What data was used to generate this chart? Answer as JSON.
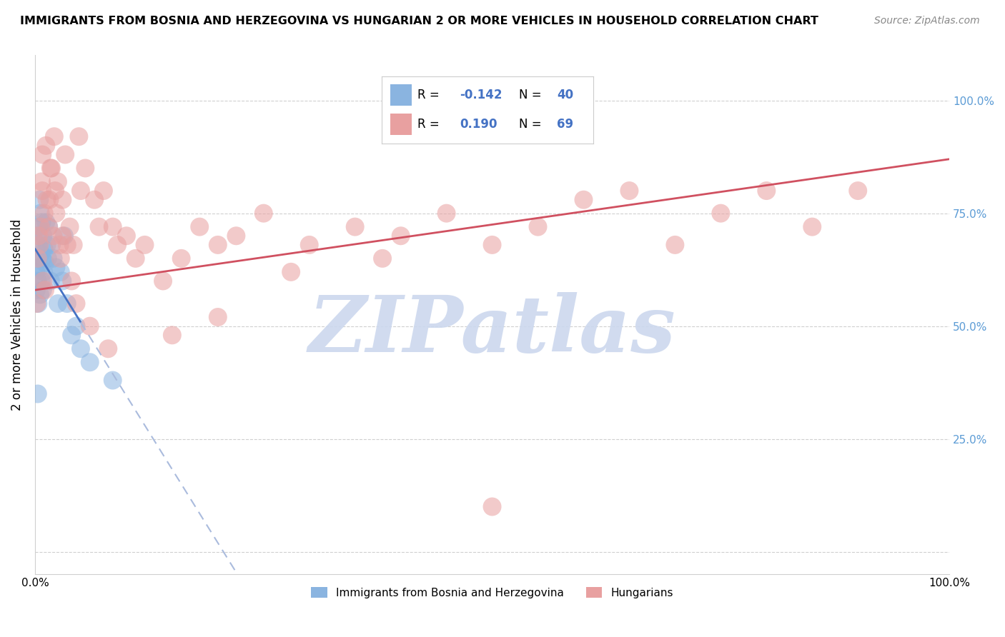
{
  "title": "IMMIGRANTS FROM BOSNIA AND HERZEGOVINA VS HUNGARIAN 2 OR MORE VEHICLES IN HOUSEHOLD CORRELATION CHART",
  "source": "Source: ZipAtlas.com",
  "ylabel": "2 or more Vehicles in Household",
  "xlim": [
    0,
    100
  ],
  "ylim": [
    -5,
    110
  ],
  "legend_blue_R": "-0.142",
  "legend_blue_N": "40",
  "legend_pink_R": "0.190",
  "legend_pink_N": "69",
  "blue_color": "#8ab4e0",
  "pink_color": "#e8a0a0",
  "blue_line_color": "#4472c4",
  "pink_line_color": "#d05060",
  "dashed_line_color": "#aabbdd",
  "watermark": "ZIPatlas",
  "watermark_color": "#ccd8ee",
  "blue_line_x0": 0,
  "blue_line_y0": 60,
  "blue_line_x1": 5,
  "blue_line_y1": 57,
  "blue_line_slope": -0.27,
  "pink_line_x0": 0,
  "pink_line_y0": 58,
  "pink_line_x1": 100,
  "pink_line_y1": 87,
  "blue_points_x": [
    0.1,
    0.15,
    0.2,
    0.25,
    0.3,
    0.35,
    0.4,
    0.45,
    0.5,
    0.55,
    0.6,
    0.65,
    0.7,
    0.75,
    0.8,
    0.85,
    0.9,
    0.95,
    1.0,
    1.1,
    1.2,
    1.3,
    1.5,
    1.7,
    2.0,
    2.3,
    2.5,
    3.0,
    3.5,
    4.0,
    4.5,
    1.8,
    2.8,
    5.0,
    6.0,
    8.5,
    3.2,
    1.4,
    0.5,
    0.3
  ],
  "blue_points_y": [
    62,
    58,
    65,
    70,
    60,
    55,
    68,
    72,
    63,
    57,
    75,
    66,
    60,
    73,
    65,
    58,
    70,
    62,
    67,
    64,
    73,
    68,
    72,
    60,
    65,
    63,
    55,
    60,
    55,
    48,
    50,
    68,
    62,
    45,
    42,
    38,
    70,
    65,
    78,
    35
  ],
  "pink_points_x": [
    0.5,
    0.8,
    1.0,
    1.2,
    1.5,
    1.8,
    2.0,
    2.2,
    2.5,
    2.8,
    3.0,
    3.3,
    3.8,
    4.2,
    4.8,
    5.5,
    6.5,
    7.5,
    8.5,
    10.0,
    12.0,
    14.0,
    16.0,
    18.0,
    20.0,
    22.0,
    25.0,
    28.0,
    30.0,
    35.0,
    38.0,
    40.0,
    45.0,
    50.0,
    55.0,
    60.0,
    65.0,
    70.0,
    75.0,
    80.0,
    85.0,
    90.0,
    0.3,
    0.6,
    0.9,
    1.3,
    1.7,
    2.3,
    3.5,
    5.0,
    7.0,
    9.0,
    1.1,
    0.4,
    0.7,
    4.5,
    6.0,
    11.0,
    15.0,
    2.1,
    3.0,
    8.0,
    0.2,
    1.6,
    2.7,
    4.0,
    0.8,
    20.0,
    50.0
  ],
  "pink_points_y": [
    68,
    80,
    75,
    90,
    72,
    85,
    70,
    80,
    82,
    65,
    78,
    88,
    72,
    68,
    92,
    85,
    78,
    80,
    72,
    70,
    68,
    60,
    65,
    72,
    68,
    70,
    75,
    62,
    68,
    72,
    65,
    70,
    75,
    68,
    72,
    78,
    80,
    68,
    75,
    80,
    72,
    80,
    65,
    72,
    60,
    78,
    85,
    75,
    68,
    80,
    72,
    68,
    58,
    70,
    82,
    55,
    50,
    65,
    48,
    92,
    70,
    45,
    55,
    78,
    68,
    60,
    88,
    52,
    10
  ]
}
